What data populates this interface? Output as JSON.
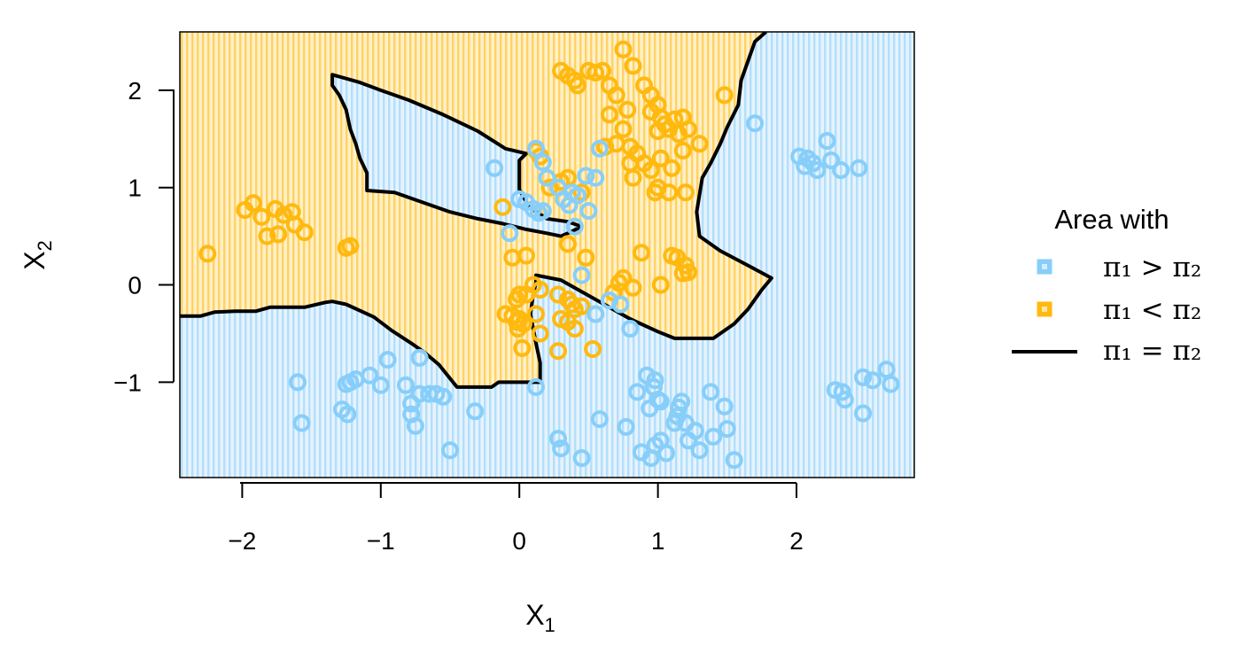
{
  "colors": {
    "class1": "#87cefa",
    "class2": "#ffb90f",
    "boundary": "#000000",
    "class1_fill": "#d4ecfb",
    "class2_fill": "#ffe6a6"
  },
  "chart_data": {
    "type": "scatter",
    "xlabel": "X",
    "xlabel_sub": "1",
    "ylabel": "X",
    "ylabel_sub": "2",
    "xlim": [
      -2.45,
      2.85
    ],
    "ylim": [
      -1.98,
      2.6
    ],
    "xticks": [
      -2,
      -1,
      0,
      1,
      2
    ],
    "yticks": [
      -1,
      0,
      1,
      2
    ],
    "xtick_labels": [
      "−2",
      "−1",
      "0",
      "1",
      "2"
    ],
    "ytick_labels": [
      "−1",
      "0",
      "1",
      "2"
    ],
    "legend": {
      "title": "Area with",
      "position": "right",
      "entries": [
        {
          "label": "π₁ > π₂",
          "kind": "area",
          "color": "#87cefa"
        },
        {
          "label": "π₁ < π₂",
          "kind": "area",
          "color": "#ffb90f"
        },
        {
          "label": "π₁ = π₂",
          "kind": "line",
          "color": "#000000"
        }
      ]
    },
    "class2_region": [
      [
        -2.45,
        -0.32
      ],
      [
        -2.3,
        -0.32
      ],
      [
        -2.2,
        -0.28
      ],
      [
        -2.05,
        -0.27
      ],
      [
        -1.9,
        -0.27
      ],
      [
        -1.8,
        -0.23
      ],
      [
        -1.55,
        -0.23
      ],
      [
        -1.4,
        -0.18
      ],
      [
        -1.35,
        -0.17
      ],
      [
        -1.25,
        -0.2
      ],
      [
        -1.05,
        -0.33
      ],
      [
        -0.92,
        -0.47
      ],
      [
        -0.78,
        -0.6
      ],
      [
        -0.68,
        -0.7
      ],
      [
        -0.58,
        -0.82
      ],
      [
        -0.45,
        -1.05
      ],
      [
        -0.2,
        -1.05
      ],
      [
        -0.15,
        -1.0
      ],
      [
        0.15,
        -1.0
      ],
      [
        0.15,
        -0.8
      ],
      [
        0.12,
        -0.6
      ],
      [
        0.08,
        -0.3
      ],
      [
        0.1,
        -0.1
      ],
      [
        0.12,
        0.03
      ],
      [
        0.12,
        0.1
      ],
      [
        0.3,
        0.05
      ],
      [
        0.55,
        -0.15
      ],
      [
        0.8,
        -0.35
      ],
      [
        1.0,
        -0.48
      ],
      [
        1.12,
        -0.55
      ],
      [
        1.4,
        -0.55
      ],
      [
        1.55,
        -0.4
      ],
      [
        1.65,
        -0.25
      ],
      [
        1.75,
        -0.05
      ],
      [
        1.82,
        0.07
      ],
      [
        1.65,
        0.2
      ],
      [
        1.45,
        0.35
      ],
      [
        1.3,
        0.5
      ],
      [
        1.28,
        0.75
      ],
      [
        1.32,
        1.1
      ],
      [
        1.38,
        1.25
      ],
      [
        1.45,
        1.45
      ],
      [
        1.5,
        1.62
      ],
      [
        1.58,
        1.85
      ],
      [
        1.6,
        2.1
      ],
      [
        1.65,
        2.3
      ],
      [
        1.7,
        2.5
      ],
      [
        1.78,
        2.6
      ],
      [
        -2.45,
        2.6
      ]
    ],
    "class1_island": [
      [
        -1.35,
        2.16
      ],
      [
        -1.35,
        2.05
      ],
      [
        -1.3,
        1.95
      ],
      [
        -1.25,
        1.8
      ],
      [
        -1.22,
        1.6
      ],
      [
        -1.18,
        1.45
      ],
      [
        -1.15,
        1.3
      ],
      [
        -1.1,
        1.15
      ],
      [
        -1.1,
        0.97
      ],
      [
        -0.9,
        0.95
      ],
      [
        -0.7,
        0.85
      ],
      [
        -0.5,
        0.75
      ],
      [
        -0.3,
        0.68
      ],
      [
        -0.12,
        0.63
      ],
      [
        0.05,
        0.57
      ],
      [
        0.2,
        0.53
      ],
      [
        0.3,
        0.5
      ],
      [
        0.38,
        0.55
      ],
      [
        0.45,
        0.6
      ],
      [
        0.35,
        0.65
      ],
      [
        0.2,
        0.68
      ],
      [
        0.07,
        0.8
      ],
      [
        0.0,
        0.98
      ],
      [
        0.0,
        1.28
      ],
      [
        0.05,
        1.35
      ],
      [
        -0.1,
        1.4
      ],
      [
        -0.3,
        1.58
      ],
      [
        -0.55,
        1.75
      ],
      [
        -0.8,
        1.9
      ],
      [
        -1.0,
        2.0
      ],
      [
        -1.15,
        2.08
      ]
    ],
    "class2_points": [
      [
        -2.25,
        0.32
      ],
      [
        -1.98,
        0.77
      ],
      [
        -1.92,
        0.84
      ],
      [
        -1.86,
        0.7
      ],
      [
        -1.82,
        0.5
      ],
      [
        -1.76,
        0.78
      ],
      [
        -1.74,
        0.52
      ],
      [
        -1.7,
        0.72
      ],
      [
        -1.64,
        0.75
      ],
      [
        -1.62,
        0.62
      ],
      [
        -1.55,
        0.54
      ],
      [
        -1.25,
        0.38
      ],
      [
        -1.22,
        0.4
      ],
      [
        -0.12,
        0.8
      ],
      [
        0.12,
        1.38
      ],
      [
        0.15,
        1.32
      ],
      [
        0.22,
        1.0
      ],
      [
        0.3,
        1.06
      ],
      [
        0.35,
        1.1
      ],
      [
        0.45,
        0.95
      ],
      [
        0.35,
        0.42
      ],
      [
        0.05,
        0.3
      ],
      [
        -0.05,
        0.28
      ],
      [
        0.48,
        0.28
      ],
      [
        0.3,
        2.2
      ],
      [
        0.35,
        2.15
      ],
      [
        0.4,
        2.1
      ],
      [
        0.42,
        2.05
      ],
      [
        0.5,
        2.2
      ],
      [
        0.55,
        2.18
      ],
      [
        0.6,
        2.2
      ],
      [
        0.65,
        2.05
      ],
      [
        0.7,
        1.95
      ],
      [
        0.75,
        2.42
      ],
      [
        0.82,
        2.25
      ],
      [
        0.9,
        2.05
      ],
      [
        0.95,
        1.95
      ],
      [
        1.0,
        1.85
      ],
      [
        0.78,
        1.8
      ],
      [
        0.65,
        1.75
      ],
      [
        0.95,
        1.78
      ],
      [
        1.02,
        1.72
      ],
      [
        1.05,
        1.65
      ],
      [
        1.12,
        1.7
      ],
      [
        1.18,
        1.72
      ],
      [
        1.08,
        1.6
      ],
      [
        1.0,
        1.58
      ],
      [
        1.15,
        1.55
      ],
      [
        1.22,
        1.6
      ],
      [
        1.3,
        1.45
      ],
      [
        0.75,
        1.6
      ],
      [
        0.7,
        1.45
      ],
      [
        0.62,
        1.42
      ],
      [
        0.8,
        1.42
      ],
      [
        0.85,
        1.35
      ],
      [
        0.9,
        1.25
      ],
      [
        0.8,
        1.25
      ],
      [
        1.02,
        1.3
      ],
      [
        1.1,
        1.2
      ],
      [
        1.18,
        1.38
      ],
      [
        0.82,
        1.1
      ],
      [
        0.95,
        1.18
      ],
      [
        1.0,
        1.0
      ],
      [
        0.98,
        0.95
      ],
      [
        1.08,
        0.95
      ],
      [
        1.2,
        0.95
      ],
      [
        1.48,
        1.95
      ],
      [
        0.88,
        0.33
      ],
      [
        1.1,
        0.3
      ],
      [
        1.14,
        0.28
      ],
      [
        1.2,
        0.2
      ],
      [
        1.18,
        0.12
      ],
      [
        1.22,
        0.13
      ],
      [
        1.02,
        0.0
      ],
      [
        0.75,
        0.07
      ],
      [
        0.72,
        0.02
      ],
      [
        0.82,
        -0.03
      ],
      [
        0.68,
        -0.08
      ],
      [
        0.1,
        0.0
      ],
      [
        0.15,
        -0.05
      ],
      [
        0.05,
        -0.1
      ],
      [
        0.0,
        -0.1
      ],
      [
        -0.02,
        -0.15
      ],
      [
        0.28,
        -0.1
      ],
      [
        0.35,
        -0.15
      ],
      [
        0.38,
        -0.2
      ],
      [
        0.4,
        -0.25
      ],
      [
        0.45,
        -0.22
      ],
      [
        0.3,
        -0.35
      ],
      [
        0.35,
        -0.38
      ],
      [
        0.4,
        -0.45
      ],
      [
        0.12,
        -0.3
      ],
      [
        0.15,
        -0.5
      ],
      [
        -0.1,
        -0.3
      ],
      [
        -0.05,
        -0.32
      ],
      [
        0.0,
        -0.35
      ],
      [
        -0.02,
        -0.38
      ],
      [
        0.03,
        -0.4
      ],
      [
        -0.01,
        -0.45
      ],
      [
        0.02,
        -0.65
      ],
      [
        0.28,
        -0.68
      ],
      [
        0.53,
        -0.66
      ],
      [
        0.55,
        -0.3
      ]
    ],
    "class1_points": [
      [
        -0.18,
        1.2
      ],
      [
        0.12,
        1.4
      ],
      [
        0.17,
        1.26
      ],
      [
        0.2,
        1.1
      ],
      [
        0.28,
        1.0
      ],
      [
        0.32,
        0.88
      ],
      [
        0.36,
        0.82
      ],
      [
        0.38,
        0.95
      ],
      [
        0.42,
        0.92
      ],
      [
        0.48,
        1.12
      ],
      [
        0.55,
        1.1
      ],
      [
        0.5,
        0.76
      ],
      [
        0.4,
        0.6
      ],
      [
        0.0,
        0.88
      ],
      [
        0.05,
        0.85
      ],
      [
        0.1,
        0.78
      ],
      [
        0.14,
        0.74
      ],
      [
        0.17,
        0.76
      ],
      [
        -0.07,
        0.53
      ],
      [
        0.58,
        1.4
      ],
      [
        1.7,
        1.66
      ],
      [
        2.02,
        1.32
      ],
      [
        2.06,
        1.22
      ],
      [
        2.08,
        1.3
      ],
      [
        2.12,
        1.25
      ],
      [
        2.15,
        1.18
      ],
      [
        2.22,
        1.48
      ],
      [
        2.25,
        1.28
      ],
      [
        2.32,
        1.18
      ],
      [
        2.45,
        1.2
      ],
      [
        0.45,
        0.1
      ],
      [
        0.55,
        -0.3
      ],
      [
        0.65,
        -0.16
      ],
      [
        0.73,
        -0.2
      ],
      [
        0.8,
        -0.45
      ],
      [
        0.12,
        -1.05
      ],
      [
        -0.72,
        -0.75
      ],
      [
        -0.95,
        -0.77
      ],
      [
        -1.08,
        -0.93
      ],
      [
        -1.18,
        -0.97
      ],
      [
        -1.22,
        -1.0
      ],
      [
        -1.25,
        -1.02
      ],
      [
        -1.6,
        -1.0
      ],
      [
        -1.0,
        -1.03
      ],
      [
        -0.82,
        -1.03
      ],
      [
        -0.78,
        -1.22
      ],
      [
        -0.78,
        -1.33
      ],
      [
        -0.75,
        -1.45
      ],
      [
        -0.72,
        -1.12
      ],
      [
        -0.65,
        -1.12
      ],
      [
        -0.6,
        -1.12
      ],
      [
        -0.55,
        -1.15
      ],
      [
        -0.5,
        -1.7
      ],
      [
        -1.28,
        -1.28
      ],
      [
        -1.24,
        -1.33
      ],
      [
        -1.57,
        -1.42
      ],
      [
        -0.32,
        -1.3
      ],
      [
        0.28,
        -1.58
      ],
      [
        0.3,
        -1.68
      ],
      [
        0.45,
        -1.78
      ],
      [
        0.58,
        -1.38
      ],
      [
        0.77,
        -1.46
      ],
      [
        0.85,
        -1.1
      ],
      [
        0.88,
        -1.72
      ],
      [
        0.92,
        -0.93
      ],
      [
        0.94,
        -1.27
      ],
      [
        0.97,
        -1.05
      ],
      [
        0.98,
        -0.98
      ],
      [
        1.0,
        -1.18
      ],
      [
        1.02,
        -1.2
      ],
      [
        1.06,
        -1.73
      ],
      [
        1.12,
        -1.42
      ],
      [
        1.14,
        -1.35
      ],
      [
        1.15,
        -1.26
      ],
      [
        1.17,
        -1.2
      ],
      [
        1.2,
        -1.42
      ],
      [
        1.22,
        -1.6
      ],
      [
        1.27,
        -1.5
      ],
      [
        1.3,
        -1.7
      ],
      [
        1.38,
        -1.1
      ],
      [
        1.4,
        -1.56
      ],
      [
        1.48,
        -1.25
      ],
      [
        1.5,
        -1.48
      ],
      [
        1.55,
        -1.8
      ],
      [
        0.95,
        -1.78
      ],
      [
        0.98,
        -1.65
      ],
      [
        1.02,
        -1.6
      ],
      [
        2.28,
        -1.08
      ],
      [
        2.33,
        -1.1
      ],
      [
        2.35,
        -1.18
      ],
      [
        2.48,
        -0.95
      ],
      [
        2.55,
        -0.98
      ],
      [
        2.65,
        -0.87
      ],
      [
        2.68,
        -1.02
      ],
      [
        2.48,
        -1.32
      ]
    ]
  }
}
